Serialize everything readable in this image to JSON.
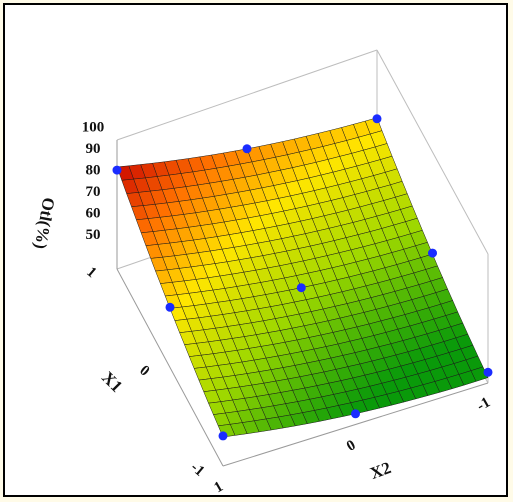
{
  "chart_data": {
    "type": "surface3d",
    "xlabel": "X2",
    "ylabel": "X1",
    "zlabel": "Otl(%)",
    "x_ticks": [
      "1",
      "0",
      "-1"
    ],
    "y_ticks": [
      "1",
      "0",
      "-1"
    ],
    "z_ticks": [
      "50",
      "60",
      "70",
      "80",
      "90",
      "100"
    ],
    "zlim": [
      40,
      100
    ],
    "xlim": [
      -1,
      1
    ],
    "ylim": [
      -1,
      1
    ],
    "surface_colors": [
      "#0a9a0a",
      "#9fd800",
      "#ffe600",
      "#ff7000",
      "#c80000"
    ],
    "grid_color": "#1a1a1a",
    "marker_color": "#1a2cff",
    "points": [
      {
        "x1": 1,
        "x2": 1,
        "y": 86
      },
      {
        "x1": 0,
        "x2": 1,
        "y": 68
      },
      {
        "x1": -1,
        "x2": 1,
        "y": 54
      },
      {
        "x1": 1,
        "x2": 0,
        "y": 75
      },
      {
        "x1": 0,
        "x2": 0,
        "y": 57
      },
      {
        "x1": -1,
        "x2": 0,
        "y": 45
      },
      {
        "x1": 1,
        "x2": -1,
        "y": 68
      },
      {
        "x1": 0,
        "x2": -1,
        "y": 53
      },
      {
        "x1": -1,
        "x2": -1,
        "y": 45
      }
    ]
  }
}
